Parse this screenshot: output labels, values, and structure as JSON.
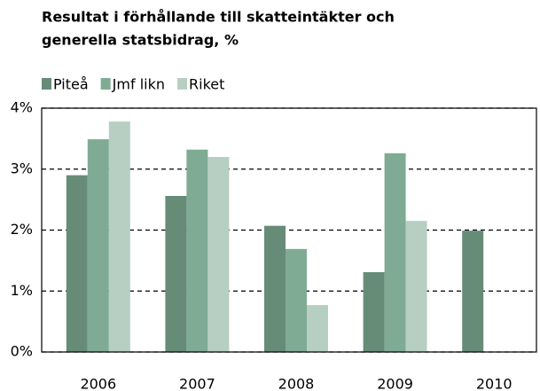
{
  "chart_data": {
    "type": "bar",
    "title": [
      "Resultat i förhållande till skatteintäkter och",
      "generella statsbidrag, %"
    ],
    "categories": [
      "2006",
      "2007",
      "2008",
      "2009",
      "2010"
    ],
    "series": [
      {
        "name": "Piteå",
        "color": "#668c78",
        "values": [
          2.9,
          2.56,
          2.07,
          1.31,
          1.99
        ]
      },
      {
        "name": "Jmf likn",
        "color": "#7fab94",
        "values": [
          3.49,
          3.32,
          1.69,
          3.26,
          null
        ]
      },
      {
        "name": "Riket",
        "color": "#b7cfc2",
        "values": [
          3.78,
          3.2,
          0.77,
          2.15,
          null
        ]
      }
    ],
    "ylim": [
      0,
      4
    ],
    "yticks": [
      {
        "value": 0,
        "label": "0%"
      },
      {
        "value": 1,
        "label": "1%"
      },
      {
        "value": 2,
        "label": "2%"
      },
      {
        "value": 3,
        "label": "3%"
      },
      {
        "value": 4,
        "label": "4%"
      }
    ],
    "grid": true,
    "legend": "top"
  }
}
